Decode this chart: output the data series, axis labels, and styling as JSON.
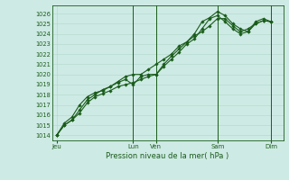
{
  "bg_color": "#ceeae4",
  "grid_color": "#b0d8cc",
  "line_color": "#1a5c1a",
  "dot_color": "#1a5c1a",
  "axis_label_color": "#1a5c1a",
  "tick_label_color": "#1a5c1a",
  "xlabel": "Pression niveau de la mer( hPa )",
  "ylim": [
    1013.5,
    1026.8
  ],
  "yticks": [
    1014,
    1015,
    1016,
    1017,
    1018,
    1019,
    1020,
    1021,
    1022,
    1023,
    1024,
    1025,
    1026
  ],
  "xtick_labels": [
    "Jeu",
    "Lun",
    "Ven",
    "Sam",
    "Dim"
  ],
  "xtick_positions": [
    0.0,
    5.0,
    6.5,
    10.5,
    14.0
  ],
  "xlim": [
    -0.3,
    14.8
  ],
  "series1_x": [
    0.0,
    0.5,
    1.0,
    1.5,
    2.0,
    2.5,
    3.0,
    3.5,
    4.0,
    4.5,
    5.0,
    5.5,
    6.0,
    6.5,
    7.0,
    7.5,
    8.0,
    8.5,
    9.0,
    9.5,
    10.0,
    10.5,
    11.0,
    11.5,
    12.0,
    12.5,
    13.0,
    13.5,
    14.0
  ],
  "series1_y": [
    1014.0,
    1015.0,
    1015.5,
    1016.2,
    1017.2,
    1017.8,
    1018.1,
    1018.4,
    1018.8,
    1019.0,
    1019.2,
    1019.5,
    1019.8,
    1020.0,
    1020.8,
    1021.5,
    1022.2,
    1023.0,
    1023.5,
    1024.5,
    1025.5,
    1025.8,
    1025.2,
    1024.5,
    1024.0,
    1024.2,
    1025.0,
    1025.3,
    1025.2
  ],
  "series2_x": [
    0.0,
    0.5,
    1.0,
    1.5,
    2.0,
    2.5,
    3.0,
    3.5,
    4.0,
    4.5,
    5.0,
    5.5,
    6.0,
    6.5,
    7.0,
    7.5,
    8.0,
    8.5,
    9.0,
    9.5,
    10.0,
    10.5,
    11.0,
    11.5,
    12.0,
    12.5,
    13.0,
    13.5,
    14.0
  ],
  "series2_y": [
    1014.0,
    1015.2,
    1015.8,
    1017.0,
    1017.8,
    1018.2,
    1018.4,
    1018.8,
    1019.2,
    1019.5,
    1019.0,
    1019.8,
    1020.0,
    1020.0,
    1021.0,
    1021.8,
    1022.5,
    1023.2,
    1024.0,
    1025.2,
    1025.6,
    1026.2,
    1025.8,
    1025.0,
    1024.5,
    1024.2,
    1025.2,
    1025.5,
    1025.2
  ],
  "series3_x": [
    0.0,
    0.5,
    1.0,
    1.5,
    2.0,
    2.5,
    3.0,
    3.5,
    4.0,
    4.5,
    5.0,
    5.5,
    6.0,
    6.5,
    7.0,
    7.5,
    8.0,
    8.5,
    9.0,
    9.5,
    10.0,
    10.5,
    11.0,
    11.5,
    12.0,
    12.5,
    13.0,
    13.5,
    14.0
  ],
  "series3_y": [
    1014.0,
    1015.0,
    1015.5,
    1016.5,
    1017.5,
    1018.0,
    1018.5,
    1018.8,
    1019.3,
    1019.8,
    1020.0,
    1020.0,
    1020.5,
    1021.0,
    1021.5,
    1022.0,
    1022.8,
    1023.2,
    1023.8,
    1024.2,
    1024.8,
    1025.5,
    1025.5,
    1024.8,
    1024.2,
    1024.5,
    1025.0,
    1025.3,
    1025.2
  ],
  "vline_positions": [
    5.0,
    6.5,
    10.5,
    14.0
  ]
}
